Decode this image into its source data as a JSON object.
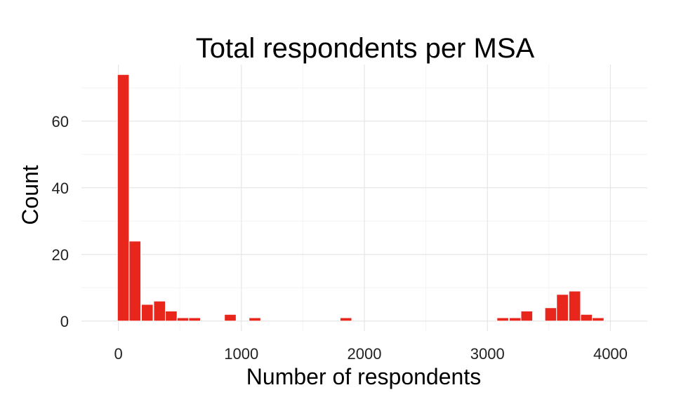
{
  "chart_data": {
    "type": "bar",
    "title": "Total respondents per MSA",
    "xlabel": "Number of respondents",
    "ylabel": "Count",
    "xlim": [
      -300,
      4300
    ],
    "ylim": [
      -3,
      77
    ],
    "x_ticks": [
      0,
      1000,
      2000,
      3000,
      4000
    ],
    "y_ticks": [
      0,
      20,
      40,
      60
    ],
    "x_tick_labels": [
      "0",
      "1000",
      "2000",
      "3000",
      "4000"
    ],
    "y_tick_labels": [
      "0",
      "20",
      "40",
      "60"
    ],
    "bin_width": 95,
    "bar_color": "#e8261c",
    "grid": true,
    "bins": [
      {
        "x": 40,
        "count": 74
      },
      {
        "x": 135,
        "count": 24
      },
      {
        "x": 235,
        "count": 5
      },
      {
        "x": 335,
        "count": 6
      },
      {
        "x": 430,
        "count": 3
      },
      {
        "x": 525,
        "count": 1
      },
      {
        "x": 620,
        "count": 1
      },
      {
        "x": 910,
        "count": 2
      },
      {
        "x": 1110,
        "count": 1
      },
      {
        "x": 1850,
        "count": 1
      },
      {
        "x": 3125,
        "count": 1
      },
      {
        "x": 3225,
        "count": 1
      },
      {
        "x": 3320,
        "count": 3
      },
      {
        "x": 3515,
        "count": 4
      },
      {
        "x": 3610,
        "count": 8
      },
      {
        "x": 3710,
        "count": 9
      },
      {
        "x": 3805,
        "count": 2
      },
      {
        "x": 3900,
        "count": 1
      }
    ]
  }
}
